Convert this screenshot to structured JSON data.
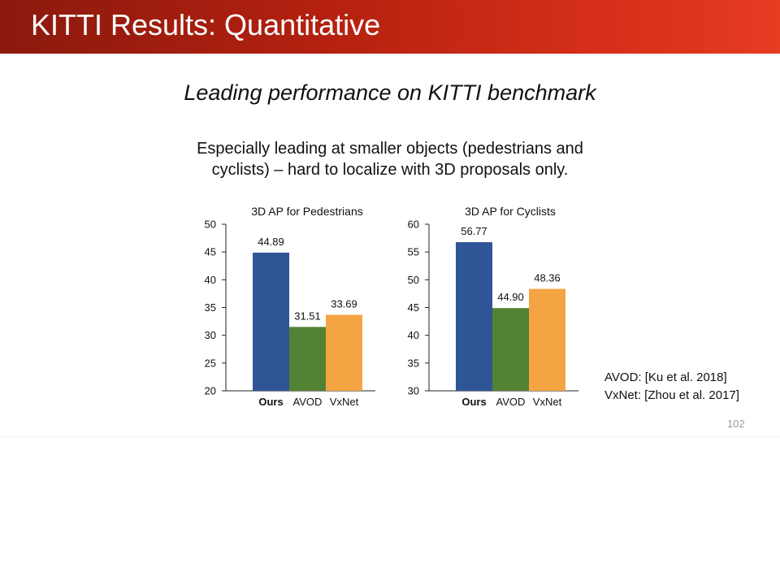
{
  "slide": {
    "title": "KITTI Results: Quantitative",
    "subtitle": "Leading performance on KITTI benchmark",
    "description_line1": "Especially leading at smaller objects (pedestrians and",
    "description_line2": "cyclists) – hard to localize with 3D proposals only.",
    "references": [
      "AVOD: [Ku et al. 2018]",
      "VxNet: [Zhou et al. 2017]"
    ],
    "page_number": "102"
  },
  "colors": {
    "ours": "#2f5597",
    "avod": "#548235",
    "vxnet": "#f4a442",
    "header_dark": "#8a1a0e",
    "header_light": "#e53c22"
  },
  "chart_data": [
    {
      "type": "bar",
      "title": "3D AP for Pedestrians",
      "categories": [
        "Ours",
        "AVOD",
        "VxNet"
      ],
      "values": [
        44.89,
        31.51,
        33.69
      ],
      "value_labels": [
        "44.89",
        "31.51",
        "33.69"
      ],
      "bold_category": "Ours",
      "ylim": [
        20,
        50
      ],
      "yticks": [
        20,
        25,
        30,
        35,
        40,
        45,
        50
      ],
      "xlabel": "",
      "ylabel": "",
      "grid": false
    },
    {
      "type": "bar",
      "title": "3D AP for Cyclists",
      "categories": [
        "Ours",
        "AVOD",
        "VxNet"
      ],
      "values": [
        56.77,
        44.9,
        48.36
      ],
      "value_labels": [
        "56.77",
        "44.90",
        "48.36"
      ],
      "bold_category": "Ours",
      "ylim": [
        30,
        60
      ],
      "yticks": [
        30,
        35,
        40,
        45,
        50,
        55,
        60
      ],
      "xlabel": "",
      "ylabel": "",
      "grid": false
    }
  ]
}
